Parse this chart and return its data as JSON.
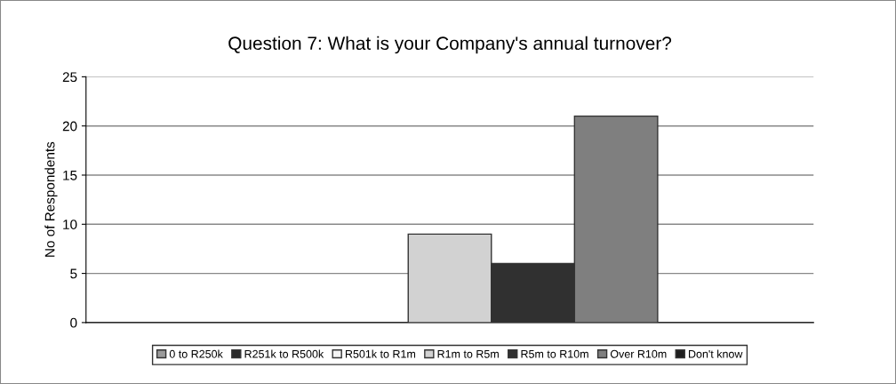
{
  "chart_data": {
    "type": "bar",
    "title": "Question 7: What is your Company's annual turnover?",
    "ylabel": "No of Respondents",
    "categories": [
      null
    ],
    "series": [
      {
        "name": "0 to R250k",
        "color": "#9a9a9a",
        "values": [
          0
        ]
      },
      {
        "name": "R251k to R500k",
        "color": "#2a2a2a",
        "values": [
          0
        ]
      },
      {
        "name": "R501k to R1m",
        "color": "#f4f4f4",
        "values": [
          0
        ]
      },
      {
        "name": "R1m to R5m",
        "color": "#d2d2d2",
        "values": [
          9
        ]
      },
      {
        "name": "R5m to R10m",
        "color": "#303030",
        "values": [
          6
        ]
      },
      {
        "name": "Over R10m",
        "color": "#7f7f7f",
        "values": [
          21
        ]
      },
      {
        "name": "Don't know",
        "color": "#1e1e1e",
        "values": [
          0
        ]
      }
    ],
    "ylim": [
      0,
      25
    ],
    "yticks": [
      0,
      5,
      10,
      15,
      20,
      25
    ],
    "grid": "y",
    "legend": "bottom"
  }
}
